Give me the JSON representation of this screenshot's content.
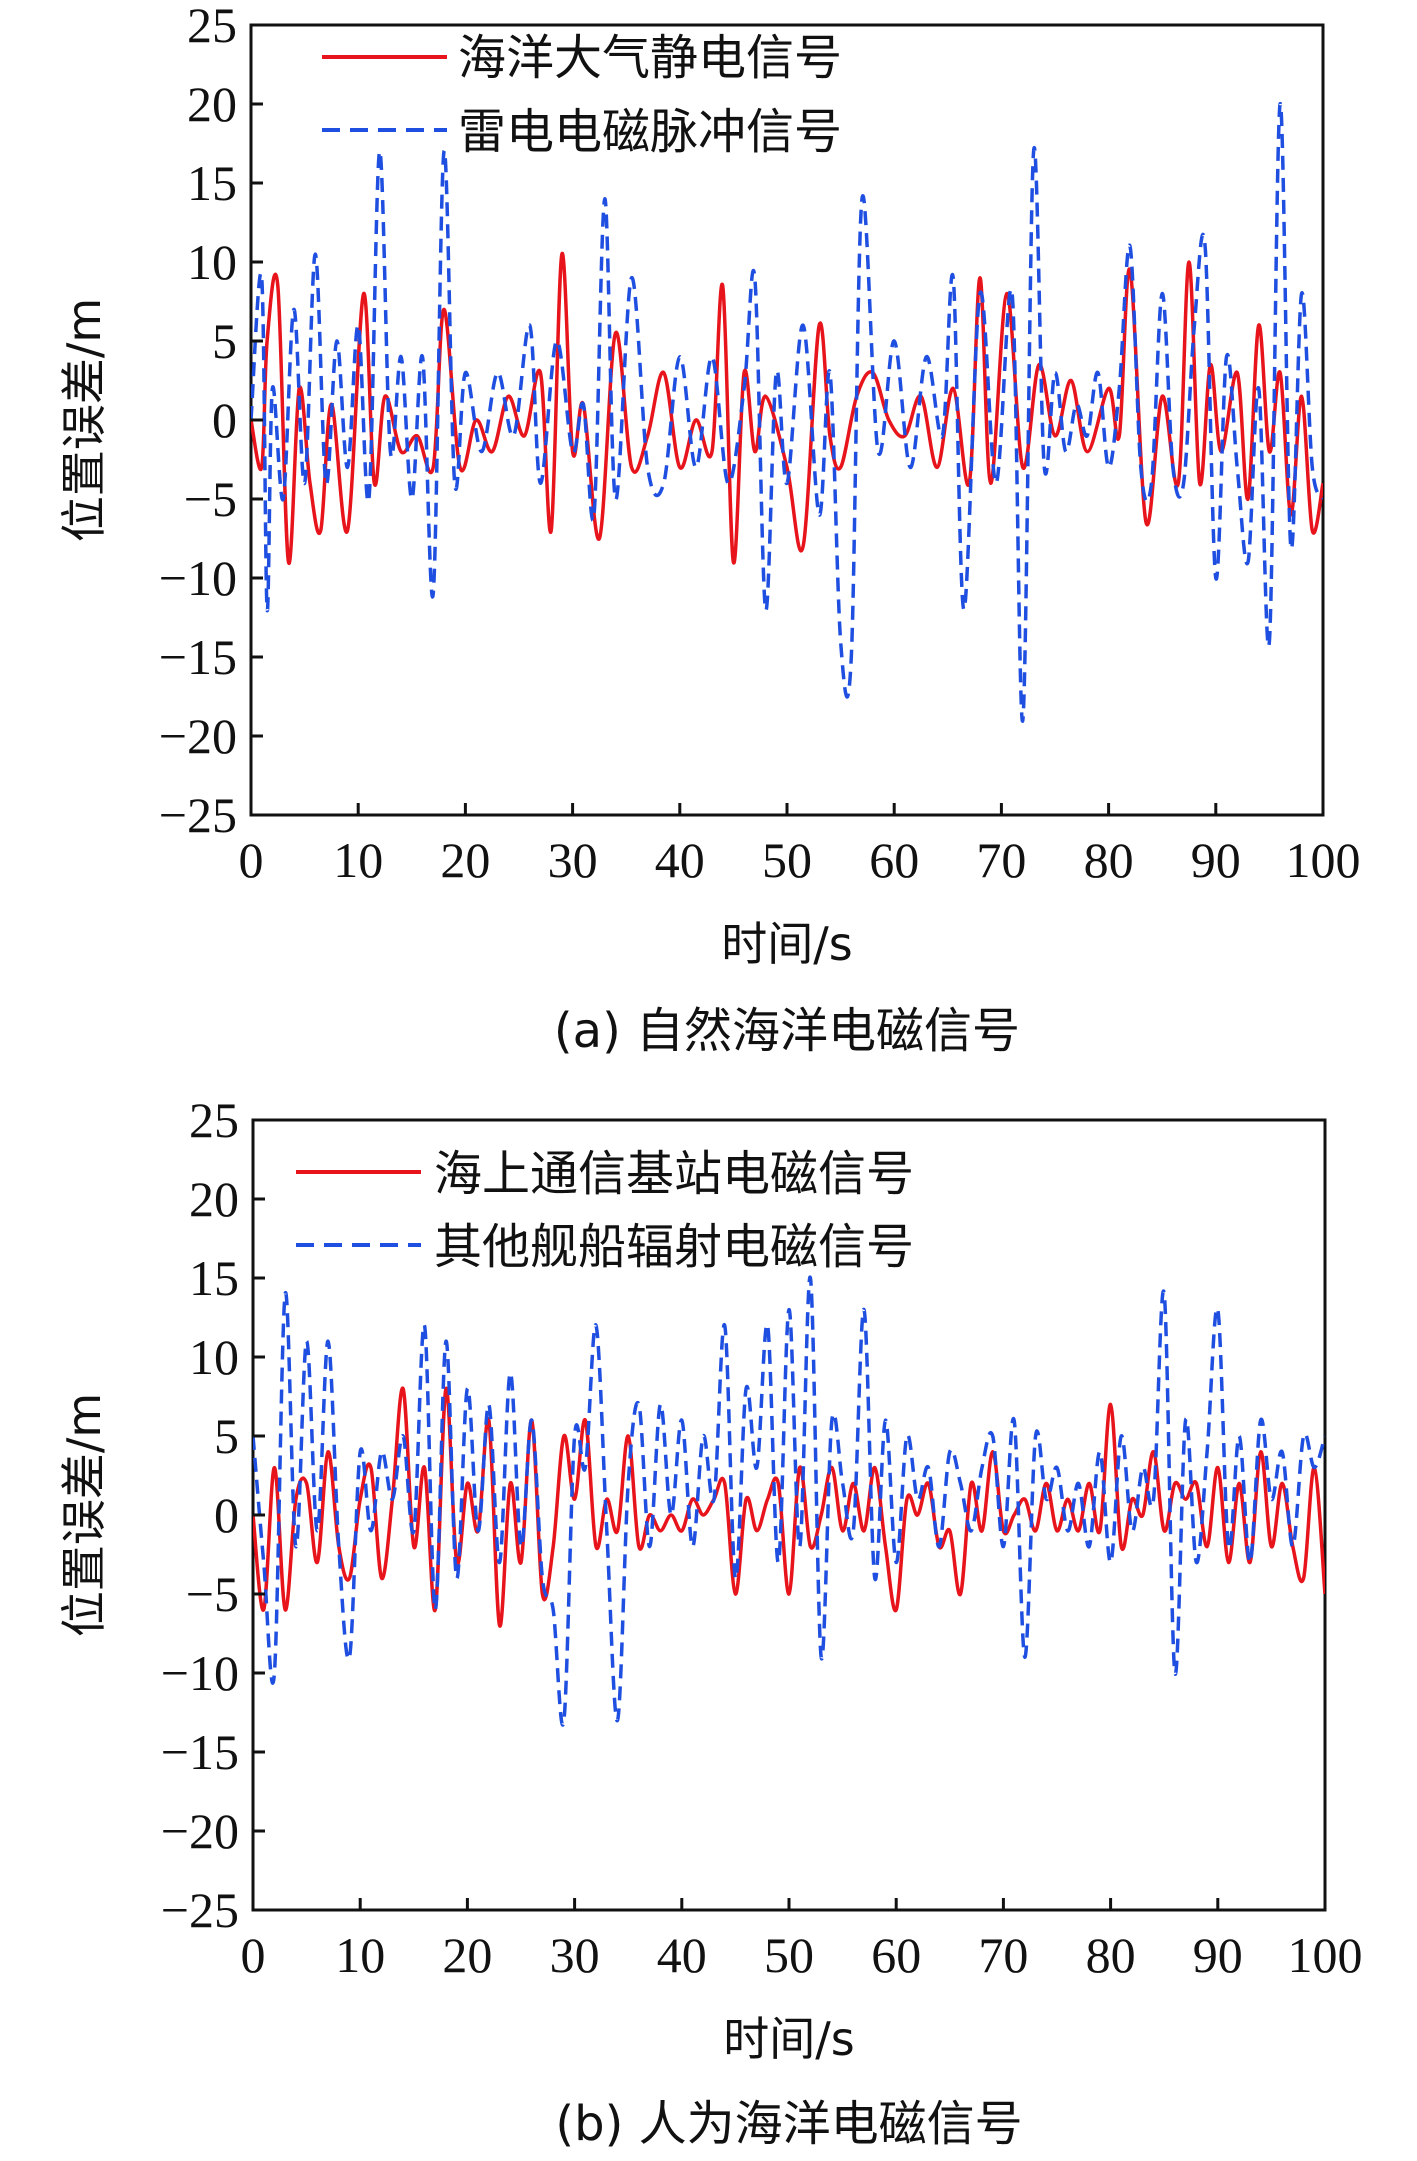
{
  "chart_data": [
    {
      "type": "line",
      "caption": "(a) 自然海洋电磁信号",
      "xlabel": "时间/s",
      "ylabel": "位置误差/m",
      "xlim": [
        0,
        100
      ],
      "ylim": [
        -25,
        25
      ],
      "xticks": [
        "0",
        "10",
        "20",
        "30",
        "40",
        "50",
        "60",
        "70",
        "80",
        "90",
        "100"
      ],
      "yticks": [
        "25",
        "20",
        "15",
        "10",
        "5",
        "0",
        "−5",
        "−10",
        "−15",
        "−20",
        "−25"
      ],
      "legend_position": "top-left",
      "series": [
        {
          "name": "海洋大气静电信号",
          "color": "#e8141c",
          "style": "solid",
          "x": [
            0,
            1,
            1.5,
            2.5,
            3.5,
            4.5,
            5.5,
            6.5,
            7.5,
            9,
            10.5,
            11.5,
            12.5,
            14,
            15.5,
            17,
            18,
            19.5,
            21,
            22.5,
            24,
            25.5,
            27,
            28,
            29,
            30,
            31,
            32.5,
            34,
            35.5,
            37,
            38.5,
            40,
            41.5,
            43,
            44,
            45,
            46,
            47,
            48,
            50,
            51.5,
            53,
            54,
            55,
            56.5,
            58,
            59.5,
            61,
            62.5,
            64,
            65.5,
            67,
            68,
            69,
            70.5,
            72,
            73.5,
            75,
            76.5,
            78,
            80,
            81,
            82,
            83.5,
            85,
            86.5,
            87.5,
            88.5,
            89.5,
            90.5,
            92,
            93,
            94,
            95,
            96,
            97,
            98,
            99,
            100
          ],
          "values": [
            0,
            -3,
            5,
            8.5,
            -9,
            2,
            -4,
            -7,
            1,
            -7,
            8,
            -4,
            1.5,
            -2,
            -1,
            -3,
            7,
            -3,
            0,
            -2,
            1.5,
            -1,
            3,
            -7,
            10.5,
            -2,
            1,
            -7.5,
            5.5,
            -3,
            -1,
            3,
            -3,
            0,
            -2,
            8.5,
            -9,
            3,
            -2,
            1.5,
            -3,
            -8,
            6,
            -1,
            -3,
            1.5,
            3,
            0,
            -1,
            1.5,
            -3,
            2,
            -4,
            9,
            -4,
            8,
            -3,
            3.5,
            -1,
            2.5,
            -2,
            2,
            -1,
            9.5,
            -6.5,
            1.5,
            -4,
            10,
            -4,
            3.5,
            -2,
            3,
            -5,
            6,
            -2,
            3,
            -6,
            1.5,
            -7,
            -4
          ]
        },
        {
          "name": "雷电电磁脉冲信号",
          "color": "#1f4fe0",
          "style": "dashed",
          "x": [
            0,
            1,
            1.5,
            2,
            3,
            4,
            5,
            6,
            7,
            8,
            9,
            10,
            11,
            12,
            13,
            14,
            15,
            16,
            17,
            18,
            19,
            20,
            21.5,
            23,
            24.5,
            26,
            27,
            28.5,
            30,
            31,
            32,
            33,
            34,
            35.5,
            37,
            38.5,
            40,
            41.5,
            43,
            44.5,
            46,
            47,
            48,
            49,
            50,
            51.5,
            53,
            54,
            55,
            56,
            57,
            58.5,
            60,
            61.5,
            63,
            64.5,
            65.5,
            66.5,
            68,
            69.5,
            71,
            72,
            73,
            74,
            75,
            76,
            77,
            78,
            79,
            80,
            81,
            82,
            83,
            84,
            85,
            86,
            87,
            88,
            89,
            90,
            91,
            92,
            93,
            94,
            95,
            96,
            97,
            98,
            99,
            100
          ],
          "values": [
            0,
            9,
            -12,
            2,
            -5,
            7,
            -4,
            10.5,
            -4,
            5,
            -3,
            6,
            -5,
            17,
            -2,
            4,
            -5,
            4,
            -11,
            17,
            -4,
            3,
            -2,
            3,
            -1,
            6,
            -4,
            5,
            -2,
            1,
            -6,
            14,
            -5,
            9,
            -3,
            -4,
            4,
            -3,
            4,
            -4,
            2,
            9,
            -12,
            3,
            -4,
            6,
            -6,
            3,
            -14,
            -15,
            14,
            -2,
            5,
            -3,
            4,
            -1,
            9,
            -12,
            8,
            -4,
            8,
            -19,
            17,
            -3,
            3,
            -2,
            1,
            -1,
            3,
            -3,
            2,
            11,
            -3,
            -4,
            8,
            -3,
            -4,
            6,
            11,
            -10,
            4,
            -3,
            -9,
            2,
            -14,
            20,
            -8,
            8,
            -3,
            -5
          ]
        }
      ]
    },
    {
      "type": "line",
      "caption": "(b) 人为海洋电磁信号",
      "xlabel": "时间/s",
      "ylabel": "位置误差/m",
      "xlim": [
        0,
        100
      ],
      "ylim": [
        -25,
        25
      ],
      "xticks": [
        "0",
        "10",
        "20",
        "30",
        "40",
        "50",
        "60",
        "70",
        "80",
        "90",
        "100"
      ],
      "yticks": [
        "25",
        "20",
        "15",
        "10",
        "5",
        "0",
        "−5",
        "−10",
        "−15",
        "−20",
        "−25"
      ],
      "legend_position": "top-left",
      "series": [
        {
          "name": "海上通信基站电磁信号",
          "color": "#e8141c",
          "style": "solid",
          "x": [
            0,
            1,
            2,
            3,
            4,
            5,
            6,
            7,
            8,
            9,
            10,
            11,
            12,
            13,
            14,
            15,
            16,
            17,
            18,
            19,
            20,
            21,
            22,
            23,
            24,
            25,
            26,
            27,
            28,
            29,
            30,
            31,
            32,
            33,
            34,
            35,
            36,
            37,
            38,
            39,
            40,
            41,
            42,
            43,
            44,
            45,
            46,
            47,
            48,
            49,
            50,
            51,
            52,
            53,
            54,
            55,
            56,
            57,
            58,
            59,
            60,
            61,
            62,
            63,
            64,
            65,
            66,
            67,
            68,
            69,
            70,
            71,
            72,
            73,
            74,
            75,
            76,
            77,
            78,
            79,
            80,
            81,
            82,
            83,
            84,
            85,
            86,
            87,
            88,
            89,
            90,
            91,
            92,
            93,
            94,
            95,
            96,
            97,
            98,
            99,
            100
          ],
          "values": [
            0,
            -6,
            3,
            -6,
            1,
            2,
            -3,
            4,
            -2,
            -4,
            1,
            3,
            -4,
            1,
            8,
            -2,
            3,
            -6,
            8,
            -3,
            2,
            -1,
            6,
            -7,
            2,
            -3,
            6,
            -5,
            -2,
            5,
            1,
            6,
            -2,
            1,
            -1,
            5,
            -2,
            0,
            -1,
            0,
            -1,
            1,
            0,
            1,
            2,
            -5,
            1,
            -1,
            1,
            2,
            -5,
            3,
            -2,
            0,
            3,
            -1,
            2,
            -1,
            3,
            -2,
            -6,
            1,
            0,
            2,
            -2,
            -1,
            -5,
            2,
            -1,
            4,
            -1,
            0,
            1,
            -1,
            2,
            -1,
            1,
            -1,
            2,
            -1,
            7,
            -2,
            1,
            0,
            4,
            -1,
            2,
            1,
            2,
            -2,
            3,
            -3,
            2,
            -3,
            4,
            -2,
            2,
            -2,
            -4,
            3,
            -5
          ]
        },
        {
          "name": "其他舰船辐射电磁信号",
          "color": "#1f4fe0",
          "style": "dashed",
          "x": [
            0,
            1,
            2,
            3,
            4,
            5,
            6,
            7,
            8,
            9,
            10,
            11,
            12,
            13,
            14,
            15,
            16,
            17,
            18,
            19,
            20,
            21,
            22,
            23,
            24,
            25,
            26,
            27,
            28,
            29,
            30,
            31,
            32,
            33,
            34,
            35,
            36,
            37,
            38,
            39,
            40,
            41,
            42,
            43,
            44,
            45,
            46,
            47,
            48,
            49,
            50,
            51,
            52,
            53,
            54,
            55,
            56,
            57,
            58,
            59,
            60,
            61,
            62,
            63,
            64,
            65,
            66,
            67,
            68,
            69,
            70,
            71,
            72,
            73,
            74,
            75,
            76,
            77,
            78,
            79,
            80,
            81,
            82,
            83,
            84,
            85,
            86,
            87,
            88,
            89,
            90,
            91,
            92,
            93,
            94,
            95,
            96,
            97,
            98,
            99,
            100
          ],
          "values": [
            5,
            -3,
            -10,
            14,
            -2,
            11,
            -1,
            11,
            -2,
            -9,
            4,
            -1,
            4,
            1,
            5,
            -1,
            12,
            -6,
            11,
            -4,
            8,
            -1,
            7,
            -3,
            9,
            -2,
            6,
            -4,
            -6,
            -13,
            5,
            3,
            12,
            -1,
            -13,
            2,
            7,
            -2,
            7,
            0,
            6,
            -2,
            5,
            1,
            12,
            -4,
            8,
            3,
            12,
            -3,
            13,
            -2,
            15,
            -9,
            6,
            2,
            -1,
            13,
            -4,
            6,
            -3,
            5,
            1,
            3,
            -2,
            4,
            2,
            -1,
            3,
            5,
            -2,
            6,
            -9,
            5,
            1,
            3,
            -1,
            2,
            -2,
            4,
            -3,
            5,
            -1,
            3,
            1,
            14,
            -10,
            6,
            -3,
            4,
            13,
            -2,
            5,
            -3,
            6,
            1,
            4,
            -2,
            5,
            3,
            5
          ]
        }
      ]
    }
  ]
}
